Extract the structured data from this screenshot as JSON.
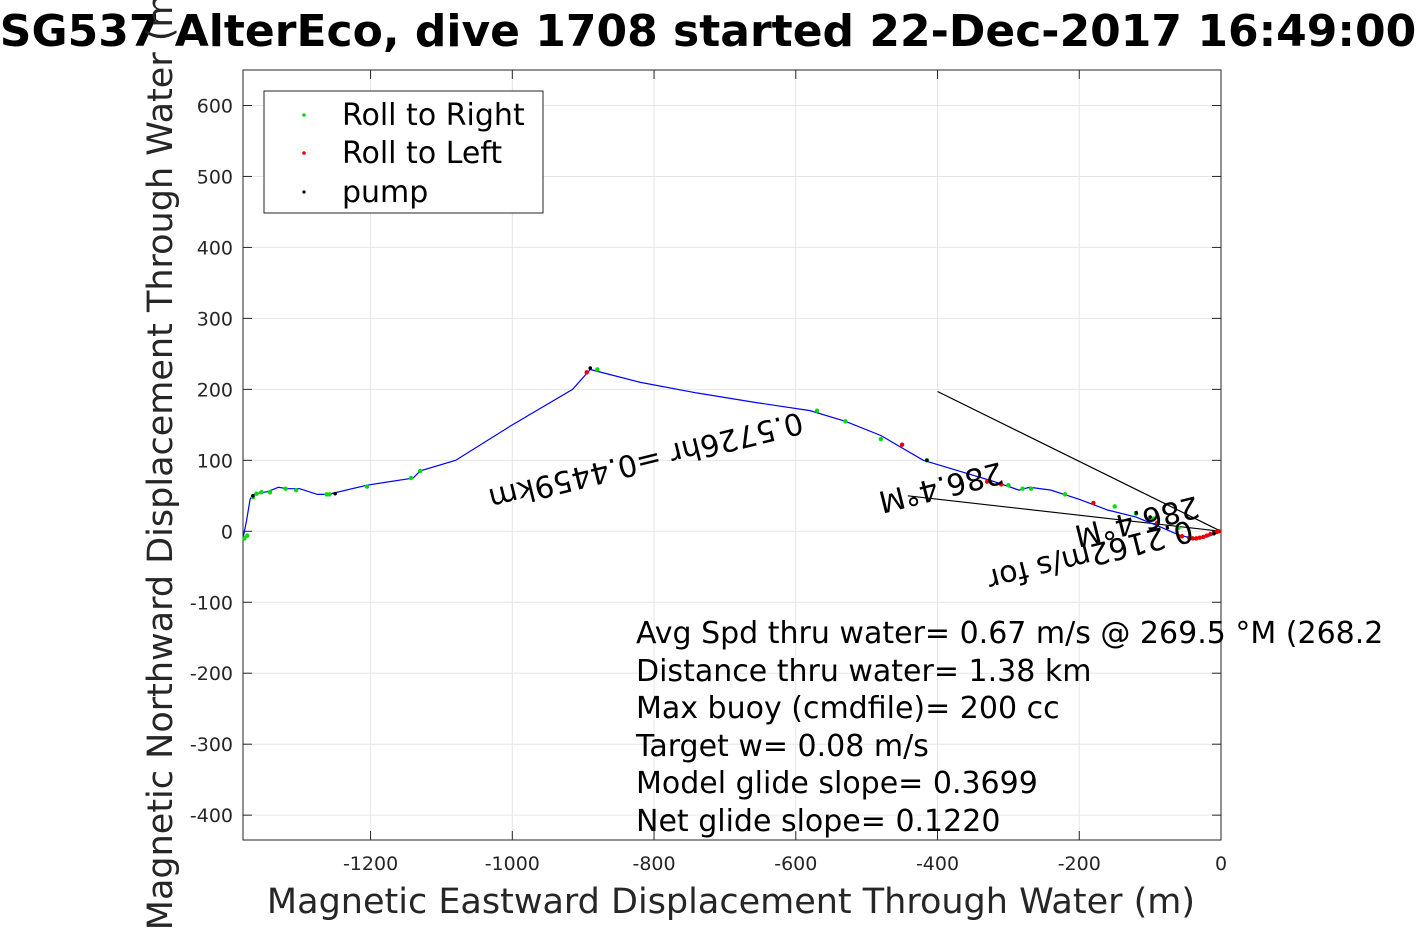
{
  "chart_data": {
    "type": "scatter",
    "title": "SG537 AlterEco, dive 1708 started 22-Dec-2017 16:49:00",
    "xlabel": "Magnetic Eastward Displacement Through Water (m)",
    "ylabel": "Magnetic Northward Displacement Through Water (m)",
    "xlim": [
      -1380,
      0
    ],
    "ylim": [
      -435,
      650
    ],
    "x_ticks": [
      -1200,
      -1000,
      -800,
      -600,
      -400,
      -200,
      0
    ],
    "y_ticks": [
      -400,
      -300,
      -200,
      -100,
      0,
      100,
      200,
      300,
      400,
      500,
      600
    ],
    "grid": true,
    "legend_position": "top-left",
    "legend": [
      {
        "label": "Roll to Right",
        "color": "#00dd00"
      },
      {
        "label": "Roll to Left",
        "color": "#ee0000"
      },
      {
        "label": "pump",
        "color": "#000000"
      }
    ],
    "track_color": "#0000ff",
    "track": {
      "x": [
        0,
        -20,
        -40,
        -60,
        -90,
        -120,
        -160,
        -200,
        -240,
        -270,
        -285,
        -320,
        -360,
        -420,
        -480,
        -530,
        -580,
        -660,
        -740,
        -820,
        -890,
        -915,
        -1000,
        -1080,
        -1130,
        -1140,
        -1205,
        -1260,
        -1275,
        -1300,
        -1318,
        -1330,
        -1345,
        -1355,
        -1363,
        -1367,
        -1370,
        -1375,
        -1380
      ],
      "y": [
        0,
        -8,
        -10,
        -5,
        8,
        20,
        30,
        45,
        58,
        62,
        58,
        70,
        82,
        100,
        135,
        155,
        170,
        182,
        195,
        210,
        228,
        200,
        150,
        100,
        85,
        75,
        65,
        52,
        52,
        60,
        60,
        62,
        56,
        54,
        53,
        50,
        45,
        15,
        -10
      ]
    },
    "series": [
      {
        "name": "Roll to Right",
        "x": [
          -1378,
          -1374,
          -1366,
          -1361,
          -1354,
          -1342,
          -1320,
          -1305,
          -1262,
          -1258,
          -1205,
          -1143,
          -1130,
          -880,
          -570,
          -530,
          -480,
          -415,
          -300,
          -280,
          -268,
          -220,
          -150,
          -120,
          -95,
          -60
        ],
        "y": [
          -10,
          -6,
          48,
          53,
          55,
          55,
          60,
          58,
          52,
          52,
          63,
          75,
          85,
          228,
          170,
          155,
          130,
          100,
          65,
          60,
          60,
          52,
          35,
          25,
          18,
          5
        ]
      },
      {
        "name": "Roll to Left",
        "x": [
          -895,
          -450,
          -330,
          -310,
          -180,
          -90,
          -55,
          -45,
          -40,
          -35,
          -30,
          -25,
          -20,
          -15,
          -10,
          -6,
          -3
        ],
        "y": [
          224,
          122,
          70,
          66,
          40,
          12,
          -7,
          -9,
          -10,
          -10,
          -9,
          -8,
          -6,
          -4,
          -3,
          -1,
          0
        ]
      },
      {
        "name": "pump",
        "x": [
          -1366,
          -1250,
          -890,
          -415,
          -100,
          -10
        ],
        "y": [
          50,
          53,
          230,
          100,
          20,
          -3
        ]
      }
    ],
    "current_lines": [
      {
        "x": [
          0,
          -400
        ],
        "y": [
          0,
          197
        ]
      },
      {
        "x": [
          0,
          -442
        ],
        "y": [
          0,
          50
        ]
      }
    ],
    "rotated_annotations": [
      {
        "text": "0.5726hr =0.4459km",
        "rotation_deg": 166
      },
      {
        "text": "286.4°M",
        "rotation_deg": 166
      },
      {
        "text": "0.2162m/s for",
        "rotation_deg": 166
      },
      {
        "text": "286.4°M",
        "rotation_deg": 166
      }
    ],
    "stats": [
      "Avg Spd thru water=  0.67 m/s @ 269.5 °M (268.2",
      "Distance thru water=  1.38 km",
      "Max buoy (cmdfile)= 200 cc",
      "Target w= 0.08 m/s",
      "Model glide slope= 0.3699",
      "Net glide slope= 0.1220"
    ]
  }
}
